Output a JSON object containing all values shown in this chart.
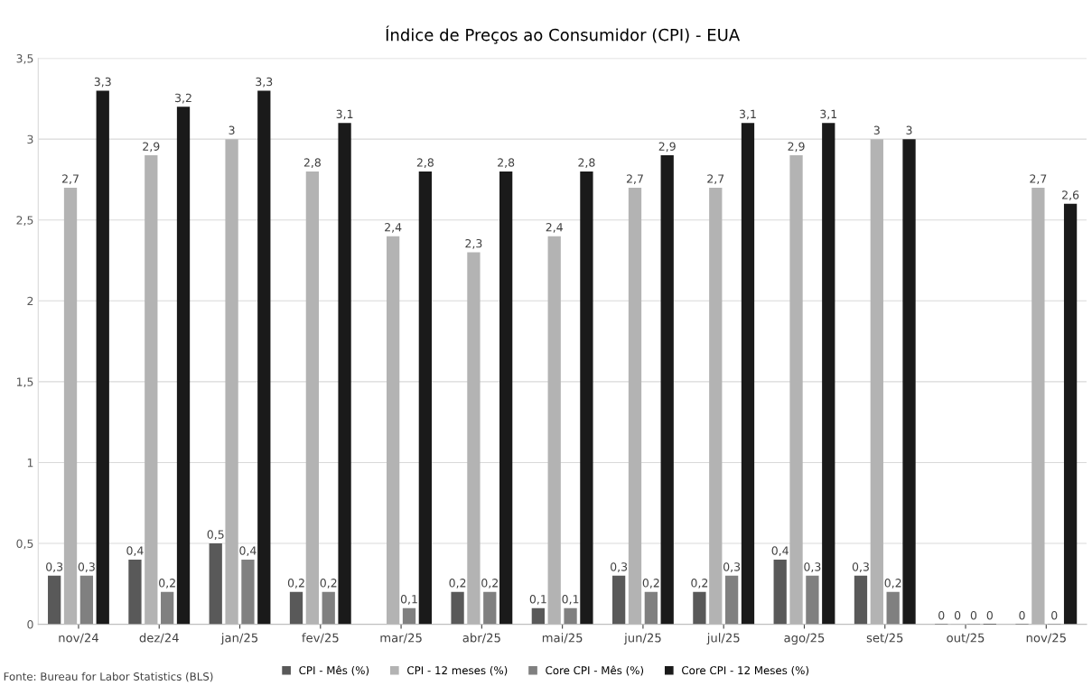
{
  "chart_data": {
    "type": "bar",
    "title": "Índice de Preços ao Consumidor (CPI) - EUA",
    "categories": [
      "nov/24",
      "dez/24",
      "jan/25",
      "fev/25",
      "mar/25",
      "abr/25",
      "mai/25",
      "jun/25",
      "jul/25",
      "ago/25",
      "set/25",
      "out/25",
      "nov/25"
    ],
    "series": [
      {
        "name": "CPI - Mês (%)",
        "color": "#595959",
        "values": [
          0.3,
          0.4,
          0.5,
          0.2,
          null,
          0.2,
          0.1,
          0.3,
          0.2,
          0.4,
          0.3,
          0,
          0
        ],
        "value_labels": [
          "0,3",
          "0,4",
          "0,5",
          "0,2",
          null,
          "0,2",
          "0,1",
          "0,3",
          "0,2",
          "0,4",
          "0,3",
          "0",
          "0"
        ]
      },
      {
        "name": "CPI - 12 meses (%)",
        "color": "#b3b3b3",
        "values": [
          2.7,
          2.9,
          3,
          2.8,
          2.4,
          2.3,
          2.4,
          2.7,
          2.7,
          2.9,
          3,
          0,
          2.7
        ],
        "value_labels": [
          "2,7",
          "2,9",
          "3",
          "2,8",
          "2,4",
          "2,3",
          "2,4",
          "2,7",
          "2,7",
          "2,9",
          "3",
          "0",
          "2,7"
        ]
      },
      {
        "name": "Core CPI - Mês (%)",
        "color": "#808080",
        "values": [
          0.3,
          0.2,
          0.4,
          0.2,
          0.1,
          0.2,
          0.1,
          0.2,
          0.3,
          0.3,
          0.2,
          0,
          0
        ],
        "value_labels": [
          "0,3",
          "0,2",
          "0,4",
          "0,2",
          "0,1",
          "0,2",
          "0,1",
          "0,2",
          "0,3",
          "0,3",
          "0,2",
          "0",
          "0"
        ]
      },
      {
        "name": "Core CPI - 12 Meses (%)",
        "color": "#1a1a1a",
        "values": [
          3.3,
          3.2,
          3.3,
          3.1,
          2.8,
          2.8,
          2.8,
          2.9,
          3.1,
          3.1,
          3,
          0,
          2.6
        ],
        "value_labels": [
          "3,3",
          "3,2",
          "3,3",
          "3,1",
          "2,8",
          "2,8",
          "2,8",
          "2,9",
          "3,1",
          "3,1",
          "3",
          "0",
          "2,6"
        ]
      }
    ],
    "ylim": [
      0,
      3.5
    ],
    "yticks": [
      0,
      {
        "value": 0.5,
        "label": "0,5"
      },
      1,
      {
        "value": 1.5,
        "label": "1,5"
      },
      2,
      {
        "value": 2.5,
        "label": "2,5"
      },
      3,
      {
        "value": 3.5,
        "label": "3,5"
      }
    ],
    "grid": "y",
    "legend": "bottom",
    "annotations": [
      "Fonte: Bureau for Labor Statistics (BLS)"
    ]
  }
}
